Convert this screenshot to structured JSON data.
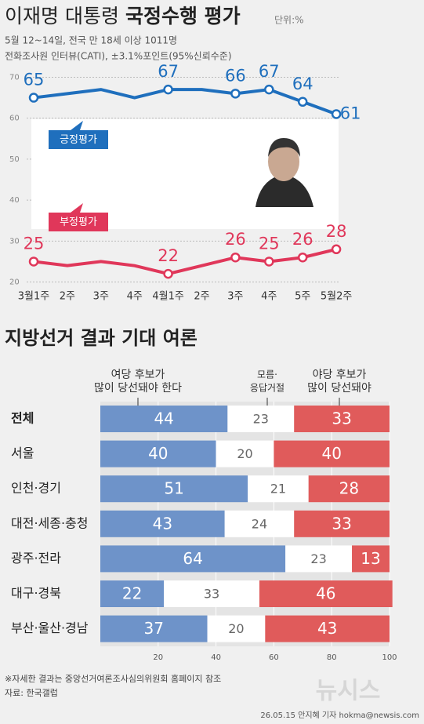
{
  "chart_data": [
    {
      "type": "line",
      "title": [
        "이재명 대통령",
        "국정수행 평가"
      ],
      "unit": "단위:%",
      "subtitle": [
        "5월 12~14일, 전국 만 18세 이상 1011명",
        "전화조사원 인터뷰(CATI), ±3.1%포인트(95%신뢰수준)"
      ],
      "categories": [
        "3월1주",
        "2주",
        "3주",
        "4주",
        "4월1주",
        "2주",
        "3주",
        "4주",
        "5주",
        "5월2주"
      ],
      "series": [
        {
          "name": "긍정평가",
          "color": "#1f6fbd",
          "values": [
            65,
            66,
            67,
            65,
            67,
            67,
            66,
            67,
            64,
            61
          ],
          "value_labels": [
            "65",
            null,
            null,
            null,
            "67",
            null,
            "66",
            "67",
            "64",
            "61"
          ]
        },
        {
          "name": "부정평가",
          "color": "#e0375a",
          "values": [
            25,
            24,
            25,
            24,
            22,
            24,
            26,
            25,
            26,
            28
          ],
          "value_labels": [
            "25",
            null,
            null,
            null,
            "22",
            null,
            "26",
            "25",
            "26",
            "28"
          ]
        }
      ],
      "ylim": [
        18,
        72
      ],
      "yticks": [
        20,
        30,
        40,
        50,
        60,
        70
      ],
      "grid": true
    },
    {
      "type": "bar",
      "orientation": "horizontal",
      "stacked": true,
      "title": "지방선거 결과 기대 여론",
      "categories": [
        "전체",
        "서울",
        "인천·경기",
        "대전·세종·충청",
        "광주·전라",
        "대구·경북",
        "부산·울산·경남"
      ],
      "series": [
        {
          "name": [
            "여당 후보가",
            "많이 당선돼야 한다"
          ],
          "color": "#6e93c9",
          "values": [
            44,
            40,
            51,
            43,
            64,
            22,
            37
          ]
        },
        {
          "name": [
            "모름·",
            "응답거절"
          ],
          "color": "#ffffff",
          "values": [
            23,
            20,
            21,
            24,
            23,
            33,
            20
          ]
        },
        {
          "name": [
            "야당 후보가",
            "많이 당선돼야"
          ],
          "color": "#e05b5b",
          "values": [
            33,
            40,
            28,
            33,
            13,
            46,
            43
          ]
        }
      ],
      "xlim": [
        0,
        100
      ],
      "xticks": [
        20,
        40,
        60,
        80,
        100
      ],
      "grid": true
    }
  ],
  "footer": {
    "note": "※자세한 결과는 중앙선거여론조사심의위원회 홈페이지 참조",
    "source": "자료: 한국갤럽",
    "credit": "26.05.15 안지혜 기자 hokma@newsis.com",
    "logo": "뉴시스"
  }
}
